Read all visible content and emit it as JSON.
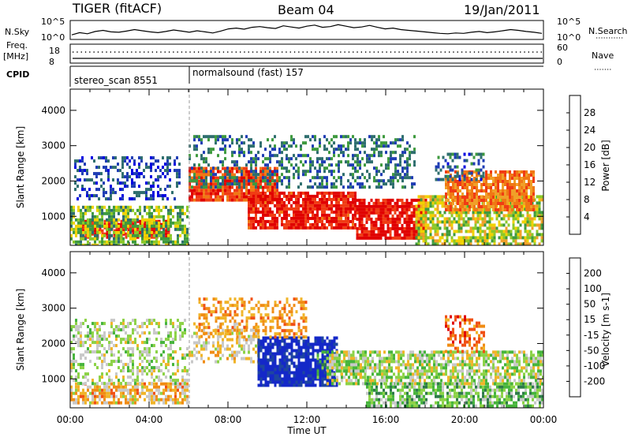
{
  "header": {
    "station": "TIGER (fitACF)",
    "beam": "Beam 04",
    "date": "19/Jan/2011"
  },
  "strips": {
    "nsky": {
      "label": "N.Sky",
      "tick_top": "10^5",
      "tick_bottom": "10^0",
      "right_label": "N.Search",
      "right_tick_top": "10^5",
      "right_tick_bottom": "10^0",
      "series": [
        1.2,
        1.8,
        1.5,
        2.1,
        2.4,
        2.0,
        1.9,
        2.2,
        2.6,
        2.3,
        2.0,
        1.8,
        2.1,
        2.5,
        2.2,
        1.9,
        2.3,
        2.0,
        1.7,
        2.2,
        2.8,
        3.0,
        2.7,
        3.2,
        3.4,
        3.1,
        2.9,
        3.6,
        3.3,
        3.0,
        3.5,
        3.8,
        3.2,
        3.4,
        3.9,
        3.5,
        3.1,
        3.3,
        3.7,
        3.2,
        2.8,
        3.0,
        2.6,
        2.4,
        2.2,
        2.0,
        1.8,
        1.6,
        1.5,
        1.7,
        1.6,
        1.9,
        2.1,
        1.8,
        2.0,
        2.3,
        2.6,
        2.4,
        2.1,
        1.9,
        1.6
      ]
    },
    "freq": {
      "label_line1": "Freq.",
      "label_line2": "[MHz]",
      "tick_top": "18",
      "tick_bottom": "8",
      "right_label": "Nave",
      "right_tick_top": "60",
      "right_tick_bottom": "0"
    },
    "cpid": {
      "label": "CPID",
      "segments": [
        {
          "start_hour": 0,
          "end_hour": 6,
          "text": "stereo_scan 8551"
        },
        {
          "start_hour": 6,
          "end_hour": 24,
          "text": "normalsound (fast) 157"
        }
      ]
    }
  },
  "panels": [
    {
      "ylabel": "Slant Range [km]",
      "yticks": [
        "1000",
        "2000",
        "3000",
        "4000"
      ],
      "colorbar_label": "Power [dB]",
      "colorbar_ticks": [
        "4",
        "8",
        "12",
        "16",
        "20",
        "24",
        "28"
      ],
      "colors": [
        "#0000e0",
        "#1e3cb4",
        "#2e6e6e",
        "#3e9a3e",
        "#8cc828",
        "#f0d200",
        "#f0a028",
        "#f07814",
        "#f03c14",
        "#e00000"
      ]
    },
    {
      "ylabel": "Slant Range [km]",
      "yticks": [
        "1000",
        "2000",
        "3000",
        "4000"
      ],
      "colorbar_label": "Velocity [m s-1]",
      "colorbar_ticks": [
        "200",
        "100",
        "50",
        "15",
        "-15",
        "-50",
        "-100",
        "-200"
      ],
      "colors": [
        "#1428c8",
        "#1e46a0",
        "#2e7a4a",
        "#46b43c",
        "#8cd246",
        "#c8c8c8",
        "#f0b428",
        "#f08c14",
        "#f05014",
        "#e00000"
      ]
    }
  ],
  "chart_data": {
    "type": "heatmap",
    "title": "TIGER (fitACF) Beam 04 19/Jan/2011",
    "xlabel": "Time UT",
    "ylabel": "Slant Range [km]",
    "xticks": [
      "00:00",
      "04:00",
      "08:00",
      "12:00",
      "16:00",
      "20:00",
      "00:00"
    ],
    "x_range_hours": [
      0,
      24
    ],
    "y_range_km": [
      180,
      4600
    ],
    "grid": false,
    "panels": [
      {
        "quantity": "Power [dB]",
        "color_scale": [
          4,
          28
        ],
        "echo_regions": [
          {
            "t0": 0.5,
            "t1": 5.0,
            "r0": 400,
            "r1": 900,
            "level": 26,
            "kind": "strong"
          },
          {
            "t0": 0.0,
            "t1": 6.0,
            "r0": 200,
            "r1": 1300,
            "level": 14,
            "kind": "band"
          },
          {
            "t0": 0.2,
            "t1": 5.5,
            "r0": 1500,
            "r1": 2700,
            "level": 8,
            "kind": "patchy"
          },
          {
            "t0": 6.0,
            "t1": 10.5,
            "r0": 1500,
            "r1": 2400,
            "level": 24,
            "kind": "strong"
          },
          {
            "t0": 9.0,
            "t1": 14.5,
            "r0": 700,
            "r1": 1700,
            "level": 26,
            "kind": "strong"
          },
          {
            "t0": 6.0,
            "t1": 17.5,
            "r0": 1800,
            "r1": 3300,
            "level": 10,
            "kind": "patchy"
          },
          {
            "t0": 14.5,
            "t1": 18.0,
            "r0": 400,
            "r1": 1500,
            "level": 27,
            "kind": "strong"
          },
          {
            "t0": 17.5,
            "t1": 24.0,
            "r0": 200,
            "r1": 1600,
            "level": 16,
            "kind": "band"
          },
          {
            "t0": 19.0,
            "t1": 23.5,
            "r0": 1200,
            "r1": 2300,
            "level": 22,
            "kind": "strong"
          },
          {
            "t0": 18.5,
            "t1": 21.0,
            "r0": 2000,
            "r1": 2800,
            "level": 9,
            "kind": "patchy"
          }
        ]
      },
      {
        "quantity": "Velocity [m s-1]",
        "color_scale": [
          -200,
          200
        ],
        "echo_regions": [
          {
            "t0": 0.0,
            "t1": 6.0,
            "r0": 300,
            "r1": 900,
            "level": -60,
            "kind": "band"
          },
          {
            "t0": 0.0,
            "t1": 6.0,
            "r0": 900,
            "r1": 2700,
            "level": 0,
            "kind": "patchy"
          },
          {
            "t0": 6.0,
            "t1": 9.5,
            "r0": 1500,
            "r1": 2600,
            "level": -40,
            "kind": "patchy"
          },
          {
            "t0": 9.5,
            "t1": 13.5,
            "r0": 800,
            "r1": 2200,
            "level": 180,
            "kind": "strong"
          },
          {
            "t0": 12.5,
            "t1": 15.0,
            "r0": 1000,
            "r1": 1800,
            "level": 60,
            "kind": "patchy"
          },
          {
            "t0": 13.0,
            "t1": 24.0,
            "r0": 900,
            "r1": 1800,
            "level": 0,
            "kind": "band"
          },
          {
            "t0": 15.0,
            "t1": 24.0,
            "r0": 200,
            "r1": 900,
            "level": 40,
            "kind": "band"
          },
          {
            "t0": 19.0,
            "t1": 21.0,
            "r0": 1800,
            "r1": 2800,
            "level": -120,
            "kind": "patchy"
          },
          {
            "t0": 6.5,
            "t1": 12.0,
            "r0": 2200,
            "r1": 3300,
            "level": -90,
            "kind": "patchy"
          }
        ]
      }
    ]
  }
}
